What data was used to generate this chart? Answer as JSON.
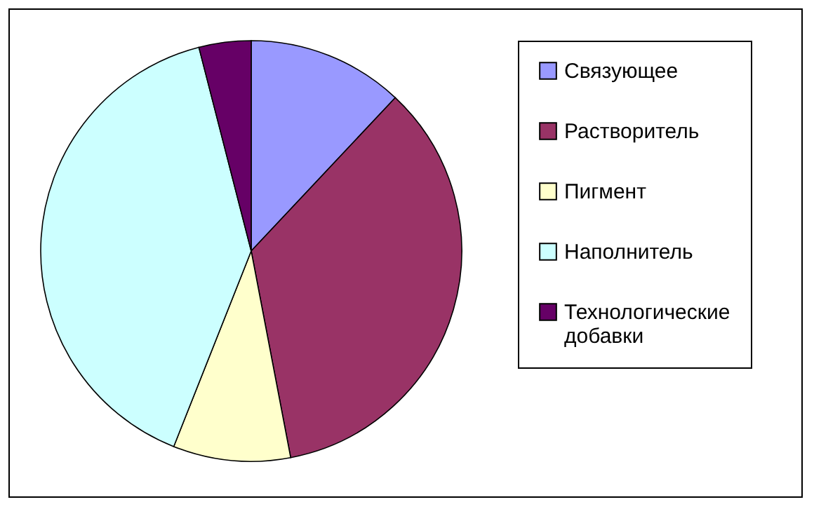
{
  "chart_data": {
    "type": "pie",
    "categories": [
      "Связующее",
      "Растворитель",
      "Пигмент",
      "Наполнитель",
      "Технологические добавки"
    ],
    "values": [
      12,
      35,
      9,
      40,
      4
    ],
    "colors": [
      "#9999ff",
      "#993366",
      "#ffffcc",
      "#ccffff",
      "#660066"
    ],
    "legend": "right"
  }
}
